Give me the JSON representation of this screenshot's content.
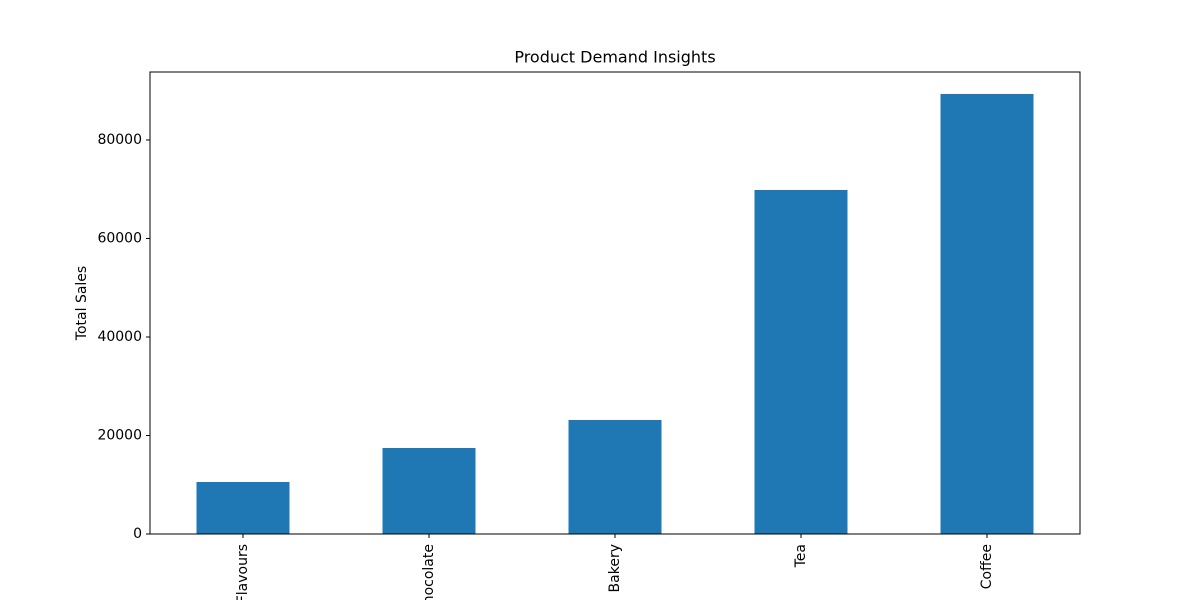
{
  "chart_data": {
    "type": "bar",
    "title": "Product Demand Insights",
    "y_label": "Total Sales",
    "categories": [
      "Flavours",
      "Chocolate",
      "Bakery",
      "Tea",
      "Coffee"
    ],
    "values": [
      10560,
      17460,
      23150,
      69850,
      89340
    ],
    "color": "#1f77b4",
    "ylim": [
      0,
      93800
    ],
    "yticks": [
      0,
      20000,
      40000,
      60000,
      80000
    ],
    "grid": false
  }
}
